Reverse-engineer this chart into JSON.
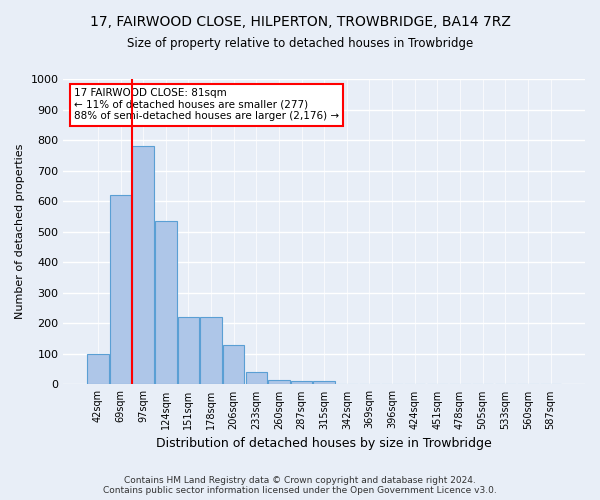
{
  "title": "17, FAIRWOOD CLOSE, HILPERTON, TROWBRIDGE, BA14 7RZ",
  "subtitle": "Size of property relative to detached houses in Trowbridge",
  "xlabel": "Distribution of detached houses by size in Trowbridge",
  "ylabel": "Number of detached properties",
  "categories": [
    "42sqm",
    "69sqm",
    "97sqm",
    "124sqm",
    "151sqm",
    "178sqm",
    "206sqm",
    "233sqm",
    "260sqm",
    "287sqm",
    "315sqm",
    "342sqm",
    "369sqm",
    "396sqm",
    "424sqm",
    "451sqm",
    "478sqm",
    "505sqm",
    "533sqm",
    "560sqm",
    "587sqm"
  ],
  "values": [
    100,
    620,
    780,
    535,
    220,
    220,
    130,
    40,
    15,
    10,
    10,
    0,
    0,
    0,
    0,
    0,
    0,
    0,
    0,
    0,
    0
  ],
  "bar_color": "#aec6e8",
  "bar_edge_color": "#5a9fd4",
  "vline_x": 1.5,
  "vline_color": "red",
  "annotation_text": "17 FAIRWOOD CLOSE: 81sqm\n← 11% of detached houses are smaller (277)\n88% of semi-detached houses are larger (2,176) →",
  "annotation_box_color": "white",
  "annotation_box_edge": "red",
  "ylim": [
    0,
    1000
  ],
  "yticks": [
    0,
    100,
    200,
    300,
    400,
    500,
    600,
    700,
    800,
    900,
    1000
  ],
  "footer1": "Contains HM Land Registry data © Crown copyright and database right 2024.",
  "footer2": "Contains public sector information licensed under the Open Government Licence v3.0.",
  "bg_color": "#e8eef7",
  "grid_color": "white"
}
